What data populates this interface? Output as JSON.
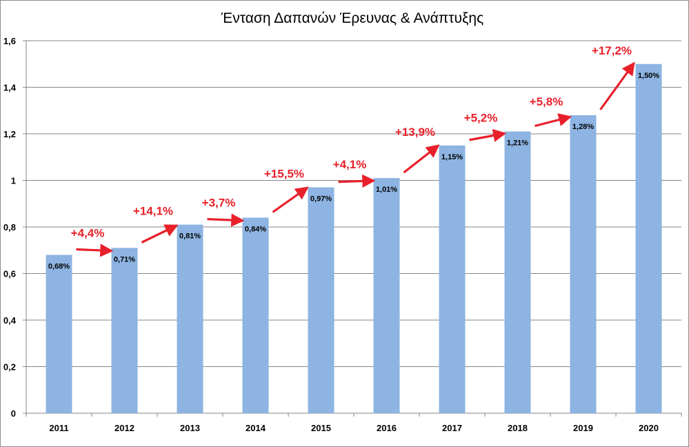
{
  "chart_data": {
    "type": "bar",
    "title": "Ένταση Δαπανών Έρευνας & Ανάπτυξης",
    "categories": [
      "2011",
      "2012",
      "2013",
      "2014",
      "2015",
      "2016",
      "2017",
      "2018",
      "2019",
      "2020"
    ],
    "values": [
      0.68,
      0.71,
      0.81,
      0.84,
      0.97,
      1.01,
      1.15,
      1.21,
      1.28,
      1.5
    ],
    "data_labels": [
      "0,68%",
      "0,71%",
      "0,81%",
      "0,84%",
      "0,97%",
      "1,01%",
      "1,15%",
      "1,21%",
      "1,28%",
      "1,50%"
    ],
    "ylim": [
      0,
      1.6
    ],
    "yticks": [
      "0",
      "0,2",
      "0,4",
      "0,6",
      "0,8",
      "1",
      "1,2",
      "1,4",
      "1,6"
    ],
    "grid": true,
    "legend": "none",
    "bar_color": "#8db4e2",
    "annotations": {
      "color": "#e8202a",
      "growth_labels": [
        "+4,4%",
        "+14,1%",
        "+3,7%",
        "+15,5%",
        "+4,1%",
        "+13,9%",
        "+5,2%",
        "+5,8%",
        "+17,2%"
      ]
    }
  }
}
